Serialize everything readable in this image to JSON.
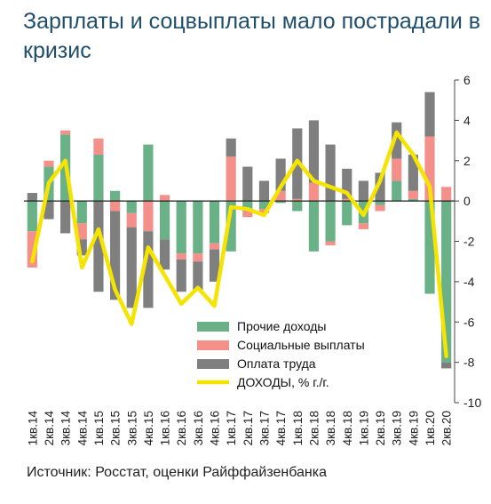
{
  "title": "Зарплаты и соцвыплаты мало пострадали в кризис",
  "source": "Источник: Росстат, оценки Райффайзенбанка",
  "chart_data": {
    "type": "bar",
    "stacked": true,
    "title": "Зарплаты и соцвыплаты мало пострадали в кризис",
    "ylim": [
      -10,
      6
    ],
    "yticks": [
      6,
      4,
      2,
      0,
      -2,
      -4,
      -6,
      -8,
      -10
    ],
    "y_axis_side": "right",
    "legend_position": "center",
    "categories": [
      "1кв.14",
      "2кв.14",
      "3кв.14",
      "4кв.14",
      "1кв.15",
      "2кв.15",
      "3кв.15",
      "4кв.15",
      "1кв.16",
      "2кв.16",
      "3кв.16",
      "4кв.16",
      "1кв.17",
      "2кв.17",
      "3кв.17",
      "4кв.17",
      "1кв.18",
      "2кв.18",
      "3кв.18",
      "4кв.18",
      "1кв.19",
      "2кв.19",
      "3кв.19",
      "4кв.19",
      "1кв.20",
      "2кв.20"
    ],
    "series": [
      {
        "name": "Прочие доходы",
        "kind": "bar",
        "color": "#6ab187",
        "values": [
          -1.5,
          1.7,
          3.3,
          -1.1,
          2.3,
          0.5,
          -0.6,
          2.8,
          -1.9,
          -2.6,
          -2.6,
          -2.1,
          -2.5,
          -0.5,
          -0.4,
          -0.1,
          -0.5,
          -2.5,
          -2.0,
          -1.2,
          -1.1,
          -0.2,
          1.0,
          0.1,
          -4.6,
          -8.0
        ]
      },
      {
        "name": "Социальные выплаты",
        "kind": "bar",
        "color": "#f4908a",
        "values": [
          -1.8,
          0.3,
          0.2,
          -0.8,
          0.8,
          -0.5,
          -0.7,
          -1.5,
          0.3,
          -0.3,
          -0.4,
          -0.3,
          2.2,
          -0.3,
          -0.2,
          0.5,
          0.1,
          0.9,
          -0.2,
          0.1,
          -0.3,
          -0.3,
          1.1,
          0.4,
          3.2,
          0.7
        ]
      },
      {
        "name": "Оплата труда",
        "kind": "bar",
        "color": "#7f7f7f",
        "values": [
          0.4,
          -0.9,
          -1.6,
          -0.8,
          -4.5,
          -4.4,
          -4.0,
          -3.8,
          -1.5,
          -1.6,
          -1.4,
          -1.6,
          0.9,
          1.7,
          1.0,
          1.6,
          3.5,
          3.1,
          2.8,
          1.5,
          1.0,
          1.4,
          1.8,
          1.8,
          2.2,
          -0.3
        ]
      },
      {
        "name": "ДОХОДЫ, % г./г.",
        "kind": "line",
        "color": "#f5e400",
        "values": [
          -3.0,
          0.9,
          2.0,
          -3.3,
          -1.4,
          -4.4,
          -6.1,
          -2.3,
          -3.7,
          -5.1,
          -4.3,
          -5.2,
          -0.3,
          -0.4,
          -0.7,
          0.7,
          2.0,
          1.0,
          0.7,
          0.4,
          -0.7,
          1.0,
          3.4,
          2.3,
          0.7,
          -7.7
        ]
      }
    ]
  }
}
